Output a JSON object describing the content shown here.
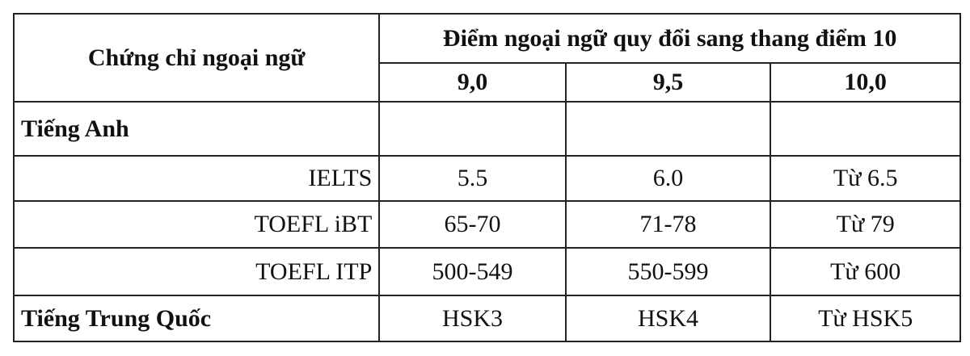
{
  "table": {
    "header": {
      "certificate": "Chứng chỉ ngoại ngữ",
      "group": "Điểm ngoại ngữ quy đổi sang thang điểm 10",
      "scores": [
        "9,0",
        "9,5",
        "10,0"
      ]
    },
    "rows": [
      {
        "label": "Tiếng Anh",
        "values": [
          "",
          "",
          ""
        ]
      },
      {
        "label": "IELTS",
        "values": [
          "5.5",
          "6.0",
          "Từ 6.5"
        ]
      },
      {
        "label": "TOEFL iBT",
        "values": [
          "65-70",
          "71-78",
          "Từ 79"
        ]
      },
      {
        "label": "TOEFL ITP",
        "values": [
          "500-549",
          "550-599",
          "Từ 600"
        ]
      },
      {
        "label": "Tiếng Trung Quốc",
        "values": [
          "HSK3",
          "HSK4",
          "Từ HSK5"
        ]
      }
    ]
  }
}
